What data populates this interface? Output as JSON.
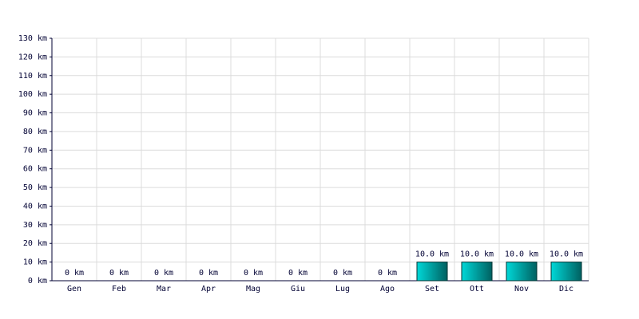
{
  "chart_data": {
    "type": "bar",
    "categories": [
      "Gen",
      "Feb",
      "Mar",
      "Apr",
      "Mag",
      "Giu",
      "Lug",
      "Ago",
      "Set",
      "Ott",
      "Nov",
      "Dic"
    ],
    "values": [
      0,
      0,
      0,
      0,
      0,
      0,
      0,
      0,
      10,
      10,
      10,
      10
    ],
    "value_labels": [
      "0 km",
      "0 km",
      "0 km",
      "0 km",
      "0 km",
      "0 km",
      "0 km",
      "0 km",
      "10.0 km",
      "10.0 km",
      "10.0 km",
      "10.0 km"
    ],
    "color": "#00d8d8",
    "ylim": [
      0,
      130
    ],
    "yticks": [
      {
        "value": 0,
        "label": "0 km"
      },
      {
        "value": 10,
        "label": "10 km"
      },
      {
        "value": 20,
        "label": "20 km"
      },
      {
        "value": 30,
        "label": "30 km"
      },
      {
        "value": 40,
        "label": "40 km"
      },
      {
        "value": 50,
        "label": "50 km"
      },
      {
        "value": 60,
        "label": "60 km"
      },
      {
        "value": 70,
        "label": "70 km"
      },
      {
        "value": 80,
        "label": "80 km"
      },
      {
        "value": 90,
        "label": "90 km"
      },
      {
        "value": 100,
        "label": "100 km"
      },
      {
        "value": 110,
        "label": "110 km"
      },
      {
        "value": 120,
        "label": "120 km"
      },
      {
        "value": 130,
        "label": "130 km"
      }
    ],
    "grid": true
  }
}
